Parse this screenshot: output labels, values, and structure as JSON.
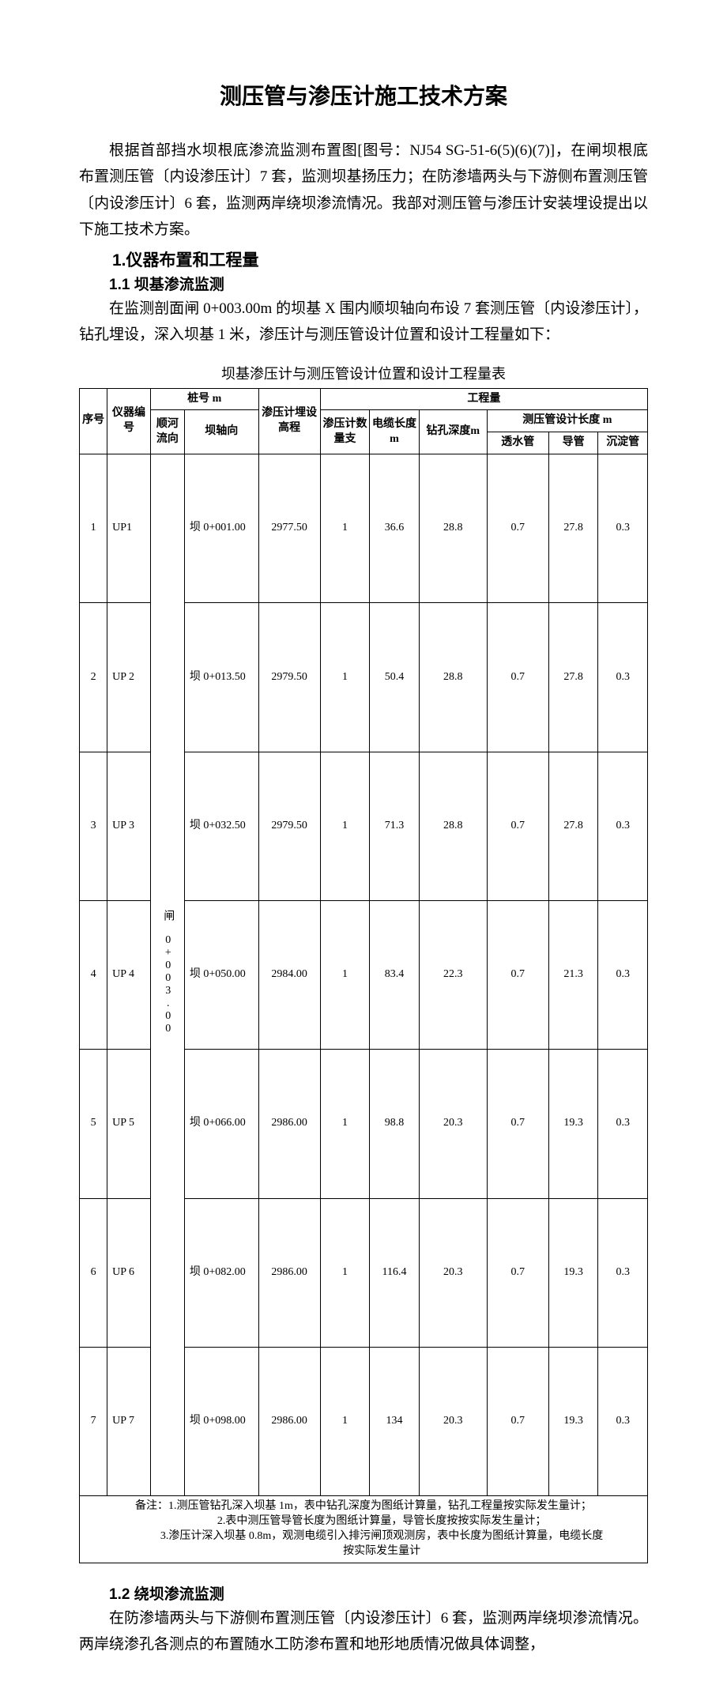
{
  "title": "测压管与渗压计施工技术方案",
  "intro": "根据首部挡水坝根底渗流监测布置图[图号：NJ54 SG-51-6(5)(6)(7)]，在闸坝根底布置测压管〔内设渗压计〕7 套，监测坝基扬压力；在防渗墙两头与下游侧布置测压管〔内设渗压计〕6 套，监测两岸绕坝渗流情况。我部对测压管与渗压计安装埋设提出以下施工技术方案。",
  "s1_title": "1.仪器布置和工程量",
  "s1_1_title": "1.1 坝基渗流监测",
  "s1_1_para": "在监测剖面闸 0+003.00m 的坝基 X 围内顺坝轴向布设 7 套测压管〔内设渗压计〕，钻孔埋设，深入坝基 1 米，渗压计与测压管设计位置和设计工程量如下：",
  "table1": {
    "caption": "坝基渗压计与测压管设计位置和设计工程量表",
    "headers": {
      "seq": "序号",
      "inst_no": "仪器编号",
      "pile_group": "桩号 m",
      "pile_river": "顺河流向",
      "pile_axis": "坝轴向",
      "elev": "渗压计埋设高程",
      "qty_group": "工程量",
      "qty_count": "渗压计数量支",
      "cable": "电缆长度m",
      "drill": "钻孔深度m",
      "pipe_group": "测压管设计长度 m",
      "perm": "透水管",
      "guide": "导管",
      "sed": "沉淀管"
    },
    "river_dir": "闸 0+003.00",
    "rows": [
      {
        "n": "1",
        "id": "UP1",
        "axis": "坝 0+001.00",
        "elev": "2977.50",
        "cnt": "1",
        "cab": "36.6",
        "drill": "28.8",
        "perm": "0.7",
        "guide": "27.8",
        "sed": "0.3"
      },
      {
        "n": "2",
        "id": "UP 2",
        "axis": "坝 0+013.50",
        "elev": "2979.50",
        "cnt": "1",
        "cab": "50.4",
        "drill": "28.8",
        "perm": "0.7",
        "guide": "27.8",
        "sed": "0.3"
      },
      {
        "n": "3",
        "id": "UP 3",
        "axis": "坝 0+032.50",
        "elev": "2979.50",
        "cnt": "1",
        "cab": "71.3",
        "drill": "28.8",
        "perm": "0.7",
        "guide": "27.8",
        "sed": "0.3"
      },
      {
        "n": "4",
        "id": "UP 4",
        "axis": "坝 0+050.00",
        "elev": "2984.00",
        "cnt": "1",
        "cab": "83.4",
        "drill": "22.3",
        "perm": "0.7",
        "guide": "21.3",
        "sed": "0.3"
      },
      {
        "n": "5",
        "id": "UP 5",
        "axis": "坝 0+066.00",
        "elev": "2986.00",
        "cnt": "1",
        "cab": "98.8",
        "drill": "20.3",
        "perm": "0.7",
        "guide": "19.3",
        "sed": "0.3"
      },
      {
        "n": "6",
        "id": "UP 6",
        "axis": "坝 0+082.00",
        "elev": "2986.00",
        "cnt": "1",
        "cab": "116.4",
        "drill": "20.3",
        "perm": "0.7",
        "guide": "19.3",
        "sed": "0.3"
      },
      {
        "n": "7",
        "id": "UP 7",
        "axis": "坝 0+098.00",
        "elev": "2986.00",
        "cnt": "1",
        "cab": "134",
        "drill": "20.3",
        "perm": "0.7",
        "guide": "19.3",
        "sed": "0.3"
      }
    ],
    "notes": {
      "n1": "备注：1.测压管钻孔深入坝基 1m，表中钻孔深度为图纸计算量，钻孔工程量按实际发生量计；",
      "n2": "2.表中测压管导管长度为图纸计算量，导管长度按按实际发生量计；",
      "n3": "3.渗压计深入坝基 0.8m，观测电缆引入排污闸顶观测房，表中长度为图纸计算量，电缆长度",
      "n3b": "按实际发生量计"
    }
  },
  "s1_2_title": "1.2 绕坝渗流监测",
  "s1_2_para": "在防渗墙两头与下游侧布置测压管〔内设渗压计〕6 套，监测两岸绕坝渗流情况。两岸绕渗孔各测点的布置随水工防渗布置和地形地质情况做具体调整，"
}
